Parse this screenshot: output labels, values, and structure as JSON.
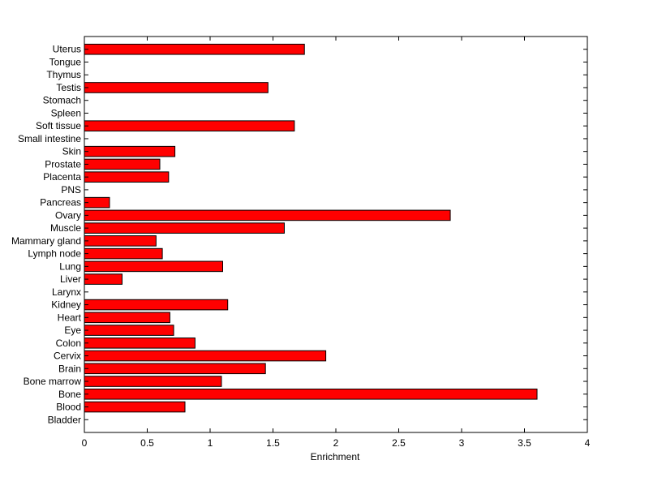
{
  "chart_data": {
    "type": "bar",
    "orientation": "horizontal",
    "title": "",
    "xlabel": "Enrichment",
    "ylabel": "",
    "xlim": [
      0,
      4
    ],
    "x_ticks": [
      "0",
      "0.5",
      "1",
      "1.5",
      "2",
      "2.5",
      "3",
      "3.5",
      "4"
    ],
    "grid": false,
    "bar_color": "#ff0000",
    "categories": [
      "Bladder",
      "Blood",
      "Bone",
      "Bone marrow",
      "Brain",
      "Cervix",
      "Colon",
      "Eye",
      "Heart",
      "Kidney",
      "Larynx",
      "Liver",
      "Lung",
      "Lymph node",
      "Mammary gland",
      "Muscle",
      "Ovary",
      "Pancreas",
      "PNS",
      "Placenta",
      "Prostate",
      "Skin",
      "Small intestine",
      "Soft tissue",
      "Spleen",
      "Stomach",
      "Testis",
      "Thymus",
      "Tongue",
      "Uterus"
    ],
    "values": [
      0,
      0.8,
      3.6,
      1.09,
      1.44,
      1.92,
      0.88,
      0.71,
      0.68,
      1.14,
      0,
      0.3,
      1.1,
      0.62,
      0.57,
      1.59,
      2.91,
      0.2,
      0,
      0.67,
      0.6,
      0.72,
      0,
      1.67,
      0,
      0,
      1.46,
      0,
      0,
      1.75
    ]
  }
}
